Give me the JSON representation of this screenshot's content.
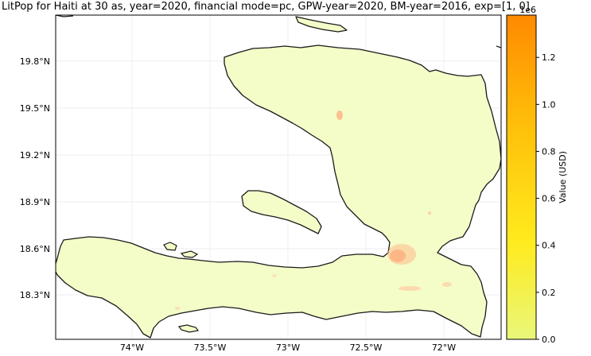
{
  "title": "LitPop for Haiti at 30 as, year=2020, financial mode=pc, GPW-year=2020, BM-year=2016, exp=[1, 0]",
  "map": {
    "lat_ticks": [
      "19.8°N",
      "19.5°N",
      "19.2°N",
      "18.9°N",
      "18.6°N",
      "18.3°N"
    ],
    "lon_ticks": [
      "74°W",
      "73.5°W",
      "73°W",
      "72.5°W",
      "72°W"
    ],
    "land_color": "#f4fcc8",
    "coast_color": "#1a1a1a"
  },
  "colorbar": {
    "label": "Value (USD)",
    "offset_label": "1e6",
    "ticks": [
      "0.0",
      "0.2",
      "0.4",
      "0.6",
      "0.8",
      "1.0",
      "1.2"
    ],
    "colors": [
      "#e9f77a",
      "#ffeb1e",
      "#ffc10a",
      "#ff8a00"
    ],
    "max": 1.38
  }
}
